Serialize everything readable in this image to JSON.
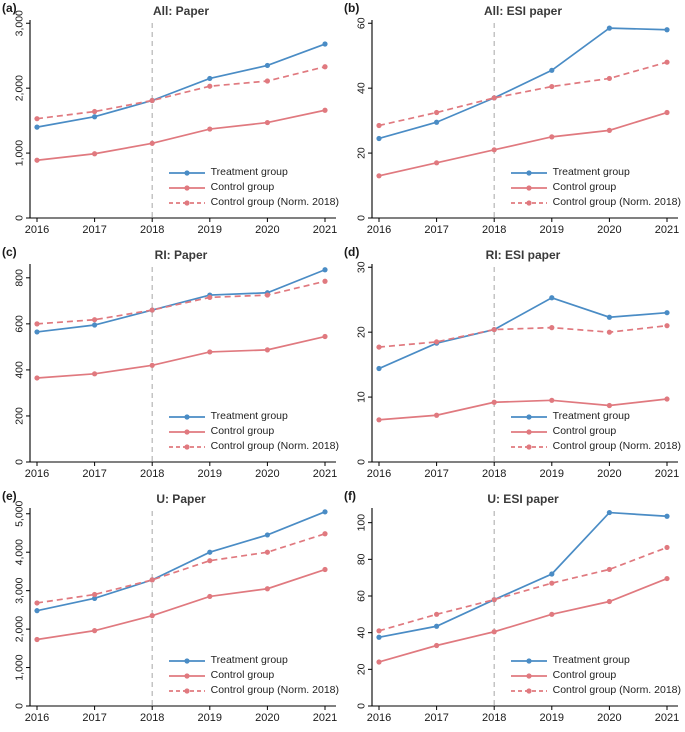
{
  "legend": {
    "treatment": "Treatment group",
    "control": "Control group",
    "control_norm": "Control group (Norm. 2018)"
  },
  "colors": {
    "treatment": "#4a8cc5",
    "control": "#e0797f",
    "reference_line": "#b5b5b5",
    "axis": "#000000",
    "tick_text": "#1a1a1a",
    "title_text": "#3a3a3a"
  },
  "chart_data": [
    {
      "type": "line",
      "tag": "(a)",
      "title": "All: Paper",
      "x": [
        2016,
        2017,
        2018,
        2019,
        2020,
        2021
      ],
      "vline_x": 2018,
      "ylim": [
        0,
        3050
      ],
      "yticks": [
        0,
        1000,
        2000,
        3000
      ],
      "ytick_labels": [
        "0",
        "1,000",
        "2,000",
        "3,000"
      ],
      "grid": false,
      "legend_position": "bottom-right",
      "series": [
        {
          "name": "Treatment group",
          "color_key": "treatment",
          "style": "solid",
          "values": [
            1400,
            1560,
            1810,
            2150,
            2350,
            2680
          ]
        },
        {
          "name": "Control group",
          "color_key": "control",
          "style": "solid",
          "values": [
            890,
            990,
            1150,
            1370,
            1470,
            1660
          ]
        },
        {
          "name": "Control group (Norm. 2018)",
          "color_key": "control",
          "style": "dashed",
          "values": [
            1530,
            1640,
            1810,
            2030,
            2110,
            2330
          ]
        }
      ]
    },
    {
      "type": "line",
      "tag": "(b)",
      "title": "All: ESI paper",
      "x": [
        2016,
        2017,
        2018,
        2019,
        2020,
        2021
      ],
      "vline_x": 2018,
      "ylim": [
        0,
        61
      ],
      "yticks": [
        0,
        20,
        40,
        60
      ],
      "ytick_labels": [
        "0",
        "20",
        "40",
        "60"
      ],
      "grid": false,
      "legend_position": "bottom-right",
      "series": [
        {
          "name": "Treatment group",
          "color_key": "treatment",
          "style": "solid",
          "values": [
            24.5,
            29.5,
            37,
            45.5,
            58.5,
            58
          ]
        },
        {
          "name": "Control group",
          "color_key": "control",
          "style": "solid",
          "values": [
            13,
            17,
            21,
            25,
            27,
            32.5
          ]
        },
        {
          "name": "Control group (Norm. 2018)",
          "color_key": "control",
          "style": "dashed",
          "values": [
            28.5,
            32.5,
            37,
            40.5,
            43,
            48
          ]
        }
      ]
    },
    {
      "type": "line",
      "tag": "(c)",
      "title": "RI: Paper",
      "x": [
        2016,
        2017,
        2018,
        2019,
        2020,
        2021
      ],
      "vline_x": 2018,
      "ylim": [
        0,
        860
      ],
      "yticks": [
        0,
        200,
        400,
        600,
        800
      ],
      "ytick_labels": [
        "0",
        "200",
        "400",
        "600",
        "800"
      ],
      "grid": false,
      "legend_position": "bottom-right",
      "series": [
        {
          "name": "Treatment group",
          "color_key": "treatment",
          "style": "solid",
          "values": [
            565,
            595,
            660,
            725,
            735,
            835
          ]
        },
        {
          "name": "Control group",
          "color_key": "control",
          "style": "solid",
          "values": [
            365,
            383,
            420,
            478,
            487,
            545
          ]
        },
        {
          "name": "Control group (Norm. 2018)",
          "color_key": "control",
          "style": "dashed",
          "values": [
            600,
            618,
            660,
            715,
            725,
            785
          ]
        }
      ]
    },
    {
      "type": "line",
      "tag": "(d)",
      "title": "RI: ESI paper",
      "x": [
        2016,
        2017,
        2018,
        2019,
        2020,
        2021
      ],
      "vline_x": 2018,
      "ylim": [
        0,
        30.5
      ],
      "yticks": [
        0,
        10,
        20,
        30
      ],
      "ytick_labels": [
        "0",
        "10",
        "20",
        "30"
      ],
      "grid": false,
      "legend_position": "bottom-right",
      "series": [
        {
          "name": "Treatment group",
          "color_key": "treatment",
          "style": "solid",
          "values": [
            14.4,
            18.3,
            20.4,
            25.3,
            22.3,
            23
          ]
        },
        {
          "name": "Control group",
          "color_key": "control",
          "style": "solid",
          "values": [
            6.5,
            7.2,
            9.2,
            9.5,
            8.7,
            9.7
          ]
        },
        {
          "name": "Control group (Norm. 2018)",
          "color_key": "control",
          "style": "dashed",
          "values": [
            17.7,
            18.5,
            20.4,
            20.7,
            20,
            21
          ]
        }
      ]
    },
    {
      "type": "line",
      "tag": "(e)",
      "title": "U: Paper",
      "x": [
        2016,
        2017,
        2018,
        2019,
        2020,
        2021
      ],
      "vline_x": 2018,
      "ylim": [
        0,
        5150
      ],
      "yticks": [
        0,
        1000,
        2000,
        3000,
        4000,
        5000
      ],
      "ytick_labels": [
        "0",
        "1,000",
        "2,000",
        "3,000",
        "4,000",
        "5,000"
      ],
      "grid": false,
      "legend_position": "bottom-right",
      "series": [
        {
          "name": "Treatment group",
          "color_key": "treatment",
          "style": "solid",
          "values": [
            2480,
            2800,
            3280,
            4000,
            4450,
            5050
          ]
        },
        {
          "name": "Control group",
          "color_key": "control",
          "style": "solid",
          "values": [
            1730,
            1960,
            2350,
            2850,
            3050,
            3550
          ]
        },
        {
          "name": "Control group (Norm. 2018)",
          "color_key": "control",
          "style": "dashed",
          "values": [
            2680,
            2900,
            3280,
            3780,
            4000,
            4480
          ]
        }
      ]
    },
    {
      "type": "line",
      "tag": "(f)",
      "title": "U: ESI paper",
      "x": [
        2016,
        2017,
        2018,
        2019,
        2020,
        2021
      ],
      "vline_x": 2018,
      "ylim": [
        0,
        108
      ],
      "yticks": [
        0,
        20,
        40,
        60,
        80,
        100
      ],
      "ytick_labels": [
        "0",
        "20",
        "40",
        "60",
        "80",
        "100"
      ],
      "grid": false,
      "legend_position": "bottom-right",
      "series": [
        {
          "name": "Treatment group",
          "color_key": "treatment",
          "style": "solid",
          "values": [
            37.5,
            43.5,
            58,
            72,
            105.5,
            103.5
          ]
        },
        {
          "name": "Control group",
          "color_key": "control",
          "style": "solid",
          "values": [
            24,
            33,
            40.5,
            50,
            57,
            69.5
          ]
        },
        {
          "name": "Control group (Norm. 2018)",
          "color_key": "control",
          "style": "dashed",
          "values": [
            41,
            50,
            58,
            67,
            74.5,
            86.5
          ]
        }
      ]
    }
  ]
}
